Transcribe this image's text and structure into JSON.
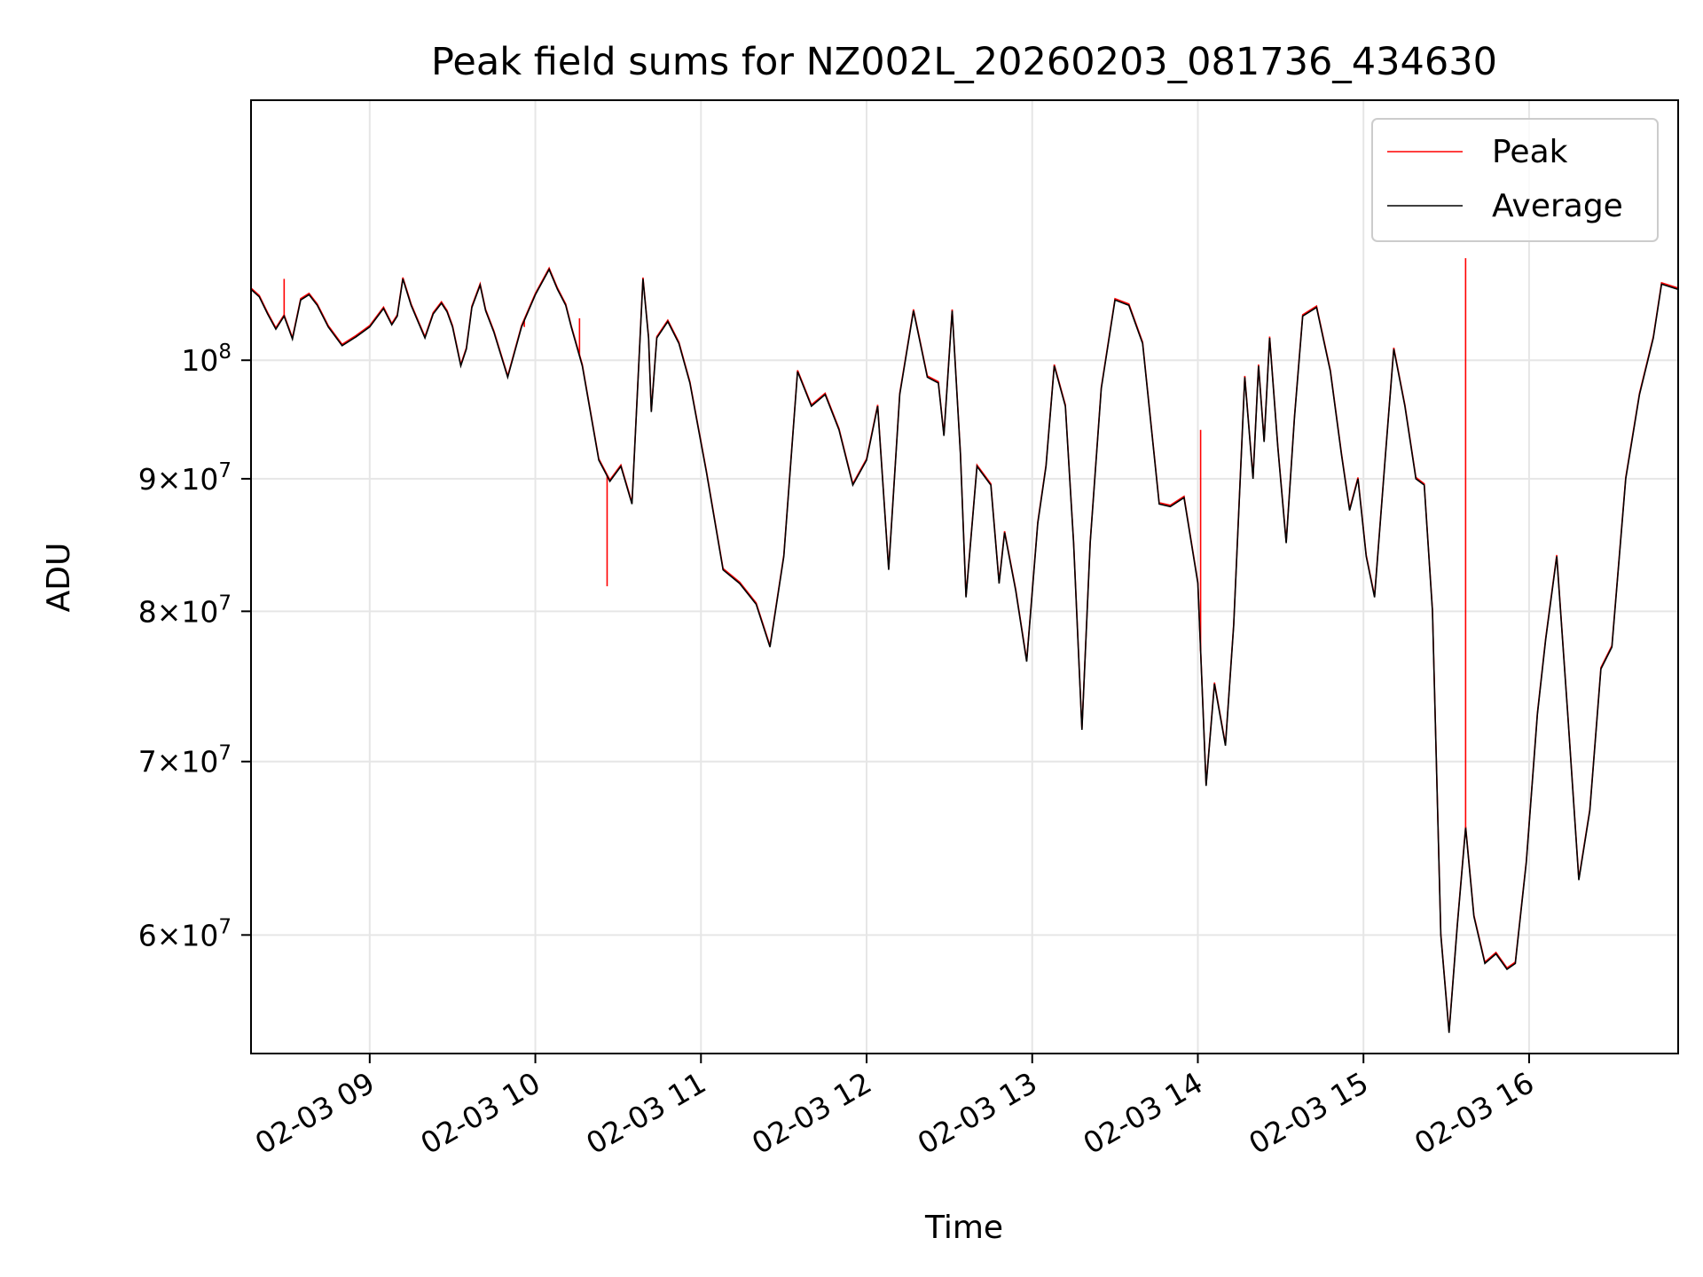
{
  "chart_data": {
    "type": "line",
    "title": "Peak field sums for NZ002L_20260203_081736_434630",
    "xlabel": "Time",
    "ylabel": "ADU",
    "y_scale": "log",
    "ylim": [
      54000000,
      126000000
    ],
    "xlim": [
      "2026-02-03 08:17",
      "2026-02-03 16:54"
    ],
    "grid": true,
    "legend_position": "upper right",
    "x_ticks": [
      "2026-02-03 09:00",
      "2026-02-03 10:00",
      "2026-02-03 11:00",
      "2026-02-03 12:00",
      "2026-02-03 13:00",
      "2026-02-03 14:00",
      "2026-02-03 15:00",
      "2026-02-03 16:00"
    ],
    "x_tick_labels": [
      "02-03 09",
      "02-03 10",
      "02-03 11",
      "02-03 12",
      "02-03 13",
      "02-03 14",
      "02-03 15",
      "02-03 16"
    ],
    "y_ticks": [
      {
        "value": 60000000,
        "mantissa": "6",
        "exp": "7"
      },
      {
        "value": 70000000,
        "mantissa": "7",
        "exp": "7"
      },
      {
        "value": 80000000,
        "mantissa": "8",
        "exp": "7"
      },
      {
        "value": 90000000,
        "mantissa": "9",
        "exp": "7"
      },
      {
        "value": 100000000,
        "mantissa": "",
        "exp": "8"
      }
    ],
    "series": [
      {
        "name": "Peak",
        "color": "#ff0000",
        "spikes": [
          [
            "2026-02-03 08:29",
            107500000
          ],
          [
            "2026-02-03 09:56",
            103000000
          ],
          [
            "2026-02-03 10:16",
            103800000
          ],
          [
            "2026-02-03 10:26",
            81800000
          ],
          [
            "2026-02-03 14:01",
            94000000
          ],
          [
            "2026-02-03 15:37",
            109500000
          ]
        ]
      },
      {
        "name": "Average",
        "color": "#000000",
        "points": [
          [
            "2026-02-03 08:17",
            106500000
          ],
          [
            "2026-02-03 08:20",
            105800000
          ],
          [
            "2026-02-03 08:23",
            104200000
          ],
          [
            "2026-02-03 08:26",
            102800000
          ],
          [
            "2026-02-03 08:29",
            104000000
          ],
          [
            "2026-02-03 08:32",
            101900000
          ],
          [
            "2026-02-03 08:35",
            105500000
          ],
          [
            "2026-02-03 08:38",
            106000000
          ],
          [
            "2026-02-03 08:41",
            105000000
          ],
          [
            "2026-02-03 08:45",
            103000000
          ],
          [
            "2026-02-03 08:50",
            101300000
          ],
          [
            "2026-02-03 08:55",
            102100000
          ],
          [
            "2026-02-03 09:00",
            103000000
          ],
          [
            "2026-02-03 09:05",
            104700000
          ],
          [
            "2026-02-03 09:08",
            103200000
          ],
          [
            "2026-02-03 09:10",
            104000000
          ],
          [
            "2026-02-03 09:12",
            107500000
          ],
          [
            "2026-02-03 09:15",
            105000000
          ],
          [
            "2026-02-03 09:18",
            103200000
          ],
          [
            "2026-02-03 09:20",
            102000000
          ],
          [
            "2026-02-03 09:23",
            104200000
          ],
          [
            "2026-02-03 09:26",
            105200000
          ],
          [
            "2026-02-03 09:28",
            104400000
          ],
          [
            "2026-02-03 09:30",
            103000000
          ],
          [
            "2026-02-03 09:33",
            99500000
          ],
          [
            "2026-02-03 09:35",
            101000000
          ],
          [
            "2026-02-03 09:37",
            104800000
          ],
          [
            "2026-02-03 09:40",
            106900000
          ],
          [
            "2026-02-03 09:42",
            104500000
          ],
          [
            "2026-02-03 09:45",
            102500000
          ],
          [
            "2026-02-03 09:50",
            98500000
          ],
          [
            "2026-02-03 09:55",
            103000000
          ],
          [
            "2026-02-03 10:00",
            106000000
          ],
          [
            "2026-02-03 10:05",
            108400000
          ],
          [
            "2026-02-03 10:08",
            106500000
          ],
          [
            "2026-02-03 10:11",
            105000000
          ],
          [
            "2026-02-03 10:13",
            103000000
          ],
          [
            "2026-02-03 10:17",
            99500000
          ],
          [
            "2026-02-03 10:23",
            91500000
          ],
          [
            "2026-02-03 10:27",
            89800000
          ],
          [
            "2026-02-03 10:31",
            91000000
          ],
          [
            "2026-02-03 10:35",
            88000000
          ],
          [
            "2026-02-03 10:39",
            107500000
          ],
          [
            "2026-02-03 10:41",
            102000000
          ],
          [
            "2026-02-03 10:42",
            95500000
          ],
          [
            "2026-02-03 10:44",
            102000000
          ],
          [
            "2026-02-03 10:48",
            103500000
          ],
          [
            "2026-02-03 10:52",
            101500000
          ],
          [
            "2026-02-03 10:56",
            98000000
          ],
          [
            "2026-02-03 11:02",
            90500000
          ],
          [
            "2026-02-03 11:08",
            83000000
          ],
          [
            "2026-02-03 11:14",
            82000000
          ],
          [
            "2026-02-03 11:20",
            80500000
          ],
          [
            "2026-02-03 11:25",
            77500000
          ],
          [
            "2026-02-03 11:30",
            84000000
          ],
          [
            "2026-02-03 11:35",
            99000000
          ],
          [
            "2026-02-03 11:40",
            96000000
          ],
          [
            "2026-02-03 11:45",
            97000000
          ],
          [
            "2026-02-03 11:50",
            94000000
          ],
          [
            "2026-02-03 11:55",
            89500000
          ],
          [
            "2026-02-03 12:00",
            91500000
          ],
          [
            "2026-02-03 12:04",
            96000000
          ],
          [
            "2026-02-03 12:08",
            83000000
          ],
          [
            "2026-02-03 12:12",
            97000000
          ],
          [
            "2026-02-03 12:17",
            104500000
          ],
          [
            "2026-02-03 12:22",
            98500000
          ],
          [
            "2026-02-03 12:26",
            98000000
          ],
          [
            "2026-02-03 12:28",
            93500000
          ],
          [
            "2026-02-03 12:31",
            104500000
          ],
          [
            "2026-02-03 12:34",
            92000000
          ],
          [
            "2026-02-03 12:36",
            81000000
          ],
          [
            "2026-02-03 12:40",
            91000000
          ],
          [
            "2026-02-03 12:45",
            89500000
          ],
          [
            "2026-02-03 12:48",
            82000000
          ],
          [
            "2026-02-03 12:50",
            85800000
          ],
          [
            "2026-02-03 12:54",
            81500000
          ],
          [
            "2026-02-03 12:58",
            76500000
          ],
          [
            "2026-02-03 13:02",
            86500000
          ],
          [
            "2026-02-03 13:05",
            91000000
          ],
          [
            "2026-02-03 13:08",
            99500000
          ],
          [
            "2026-02-03 13:12",
            96000000
          ],
          [
            "2026-02-03 13:15",
            85000000
          ],
          [
            "2026-02-03 13:18",
            72000000
          ],
          [
            "2026-02-03 13:21",
            85000000
          ],
          [
            "2026-02-03 13:25",
            97500000
          ],
          [
            "2026-02-03 13:30",
            105500000
          ],
          [
            "2026-02-03 13:35",
            105000000
          ],
          [
            "2026-02-03 13:40",
            101500000
          ],
          [
            "2026-02-03 13:46",
            88000000
          ],
          [
            "2026-02-03 13:50",
            87800000
          ],
          [
            "2026-02-03 13:55",
            88500000
          ],
          [
            "2026-02-03 14:00",
            82000000
          ],
          [
            "2026-02-03 14:03",
            68500000
          ],
          [
            "2026-02-03 14:06",
            75000000
          ],
          [
            "2026-02-03 14:10",
            71000000
          ],
          [
            "2026-02-03 14:13",
            79000000
          ],
          [
            "2026-02-03 14:17",
            98500000
          ],
          [
            "2026-02-03 14:20",
            90000000
          ],
          [
            "2026-02-03 14:22",
            99500000
          ],
          [
            "2026-02-03 14:24",
            93000000
          ],
          [
            "2026-02-03 14:26",
            102000000
          ],
          [
            "2026-02-03 14:29",
            92500000
          ],
          [
            "2026-02-03 14:32",
            85000000
          ],
          [
            "2026-02-03 14:35",
            95000000
          ],
          [
            "2026-02-03 14:38",
            104000000
          ],
          [
            "2026-02-03 14:43",
            104800000
          ],
          [
            "2026-02-03 14:48",
            99000000
          ],
          [
            "2026-02-03 14:52",
            92000000
          ],
          [
            "2026-02-03 14:55",
            87500000
          ],
          [
            "2026-02-03 14:58",
            90000000
          ],
          [
            "2026-02-03 15:01",
            84000000
          ],
          [
            "2026-02-03 15:04",
            81000000
          ],
          [
            "2026-02-03 15:08",
            92000000
          ],
          [
            "2026-02-03 15:11",
            101000000
          ],
          [
            "2026-02-03 15:15",
            96000000
          ],
          [
            "2026-02-03 15:19",
            90000000
          ],
          [
            "2026-02-03 15:22",
            89500000
          ],
          [
            "2026-02-03 15:25",
            80000000
          ],
          [
            "2026-02-03 15:28",
            60000000
          ],
          [
            "2026-02-03 15:31",
            55000000
          ],
          [
            "2026-02-03 15:34",
            60500000
          ],
          [
            "2026-02-03 15:37",
            66000000
          ],
          [
            "2026-02-03 15:40",
            61000000
          ],
          [
            "2026-02-03 15:44",
            58500000
          ],
          [
            "2026-02-03 15:48",
            59000000
          ],
          [
            "2026-02-03 15:52",
            58200000
          ],
          [
            "2026-02-03 15:55",
            58500000
          ],
          [
            "2026-02-03 15:59",
            64000000
          ],
          [
            "2026-02-03 16:03",
            73000000
          ],
          [
            "2026-02-03 16:06",
            78000000
          ],
          [
            "2026-02-03 16:10",
            84000000
          ],
          [
            "2026-02-03 16:14",
            73000000
          ],
          [
            "2026-02-03 16:18",
            63000000
          ],
          [
            "2026-02-03 16:22",
            67000000
          ],
          [
            "2026-02-03 16:26",
            76000000
          ],
          [
            "2026-02-03 16:30",
            77500000
          ],
          [
            "2026-02-03 16:35",
            90000000
          ],
          [
            "2026-02-03 16:40",
            97000000
          ],
          [
            "2026-02-03 16:45",
            102000000
          ],
          [
            "2026-02-03 16:48",
            107000000
          ],
          [
            "2026-02-03 16:54",
            106500000
          ]
        ]
      }
    ]
  }
}
